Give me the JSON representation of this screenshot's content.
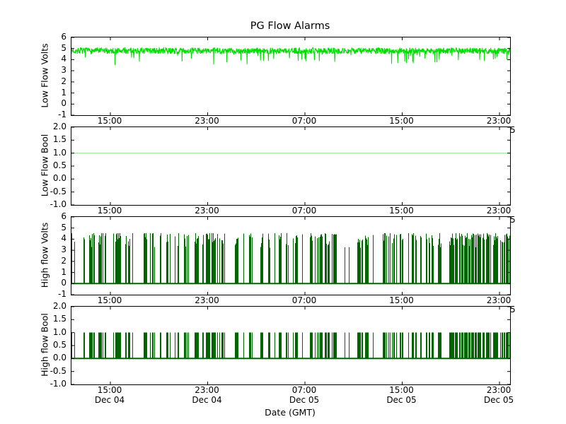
{
  "chart_data": {
    "type": "line",
    "title": "PG Flow Alarms",
    "xlabel": "Date (GMT)",
    "grid": false,
    "legend": "none",
    "x_tick_labels": [
      "15:00",
      "23:00",
      "07:00",
      "15:00",
      "23:00"
    ],
    "x_date_labels": [
      "Dec 04",
      "Dec 04",
      "Dec 05",
      "Dec 05",
      "Dec 05"
    ],
    "clipped_right_date_fragment": "5",
    "xlim_note": "approx Dec 04 11:50 GMT to Dec 05 23:50 GMT",
    "subplots": [
      {
        "ylabel": "Low Flow Volts",
        "ylim": [
          -1,
          6
        ],
        "ytick_labels": [
          "6",
          "5",
          "4",
          "3",
          "2",
          "1",
          "0",
          "-1"
        ],
        "series": [
          {
            "name": "Low Flow Volts",
            "color": "#00dd00",
            "pattern": "dense-noise-band",
            "mean": 4.8,
            "band": [
              4.5,
              5.05
            ],
            "occasional_dips_to": 3.7,
            "dip_rate": 0.05
          }
        ]
      },
      {
        "ylabel": "Low Flow Bool",
        "ylim": [
          -1,
          2
        ],
        "ytick_labels": [
          "2.0",
          "1.5",
          "1.0",
          "0.5",
          "0.0",
          "-0.5",
          "-1.0"
        ],
        "series": [
          {
            "name": "Low Flow Bool",
            "color": "#a8e8a8",
            "pattern": "constant",
            "value": 1.0
          }
        ]
      },
      {
        "ylabel": "High flow Volts",
        "ylim": [
          -1,
          6
        ],
        "ytick_labels": [
          "6",
          "5",
          "4",
          "3",
          "2",
          "1",
          "0",
          "-1"
        ],
        "series": [
          {
            "name": "High flow Volts",
            "color": "#006600",
            "pattern": "pulse-train",
            "baseline": 0.0,
            "pulse_height_range": [
              3.2,
              4.55
            ],
            "duty_mid": 0.35,
            "duty_right_end": 0.75
          }
        ]
      },
      {
        "ylabel": "High flow Bool",
        "ylim": [
          -1,
          2
        ],
        "ytick_labels": [
          "2.0",
          "1.5",
          "1.0",
          "0.5",
          "0.0",
          "-0.5",
          "-1.0"
        ],
        "series": [
          {
            "name": "High flow Bool",
            "color": "#006600",
            "pattern": "pulse-train",
            "baseline": 0.0,
            "pulse_height": 1.0
          }
        ]
      }
    ]
  }
}
